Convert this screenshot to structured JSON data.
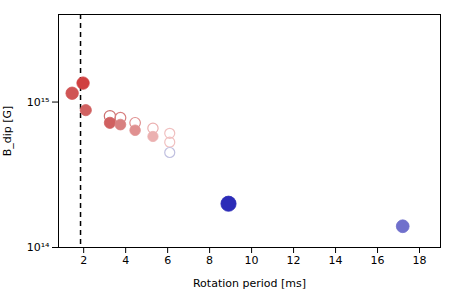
{
  "chart_data": {
    "type": "scatter",
    "xlabel": "Rotation period [ms]",
    "ylabel": "B_dip [G]",
    "log": "y",
    "x": [
      1.45,
      1.97,
      2.1,
      3.25,
      3.25,
      3.75,
      3.75,
      4.45,
      4.45,
      5.3,
      5.3,
      6.1,
      6.1,
      6.1,
      8.9,
      17.2
    ],
    "values": [
      1150000000000000.0,
      1350000000000000.0,
      880000000000000.0,
      800000000000000.0,
      720000000000000.0,
      780000000000000.0,
      700000000000000.0,
      720000000000000.0,
      640000000000000.0,
      660000000000000.0,
      580000000000000.0,
      610000000000000.0,
      530000000000000.0,
      450000000000000.0,
      200000000000000.0,
      140000000000000.0
    ],
    "colors": [
      "#d05555",
      "#d04040",
      "#d06060",
      "#cc7070",
      "#d06060",
      "#d88080",
      "#d88080",
      "#e09090",
      "#e09090",
      "#ebb0b0",
      "#ebb0b0",
      "#f0c0c0",
      "#f0c0c0",
      "#c0c0e0",
      "#2c2cb8",
      "#7070cc"
    ],
    "sizes": [
      80,
      80,
      65,
      65,
      65,
      60,
      60,
      58,
      58,
      55,
      55,
      52,
      52,
      52,
      120,
      85
    ],
    "markers": [
      "filled",
      "filled",
      "filled",
      "open",
      "filled",
      "open",
      "filled",
      "open",
      "filled",
      "open",
      "filled",
      "open",
      "open",
      "open",
      "filled",
      "filled"
    ],
    "annotations": [
      {
        "type": "vline",
        "x": 1.85,
        "line_style": "dashed",
        "color": "#000000"
      }
    ],
    "xlim": [
      0.8,
      19
    ],
    "xticks": [
      2,
      4,
      6,
      8,
      10,
      12,
      14,
      16,
      18
    ],
    "ylim": [
      100000000000000.0,
      4000000000000000.0
    ],
    "yticks": [
      {
        "value": 100000000000000.0,
        "label": "10¹⁴"
      },
      {
        "value": 1000000000000000.0,
        "label": "10¹⁵"
      }
    ],
    "grid": false
  }
}
